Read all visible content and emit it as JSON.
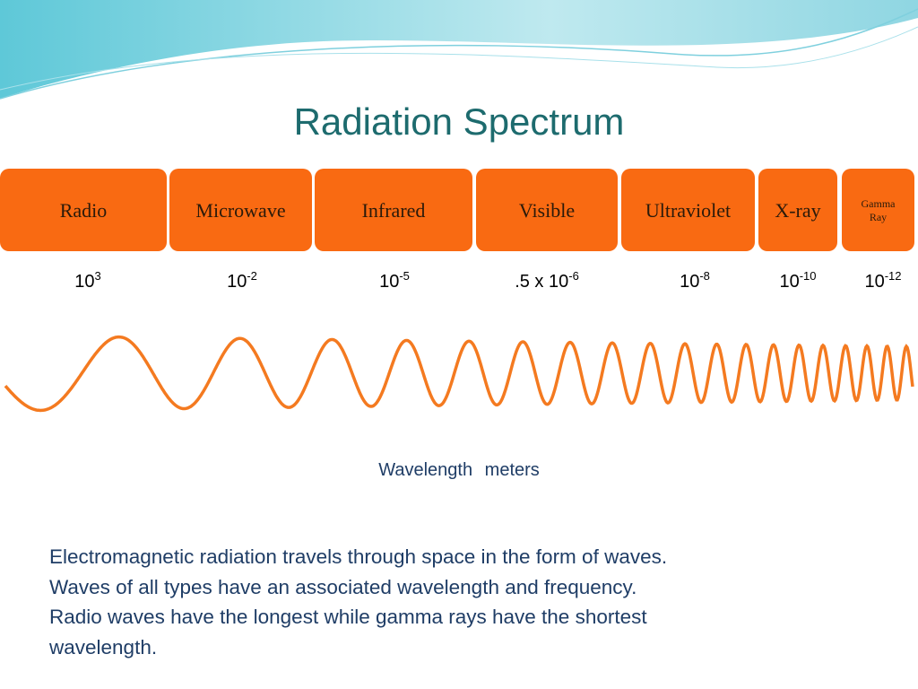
{
  "title": "Radiation Spectrum",
  "bands": [
    {
      "label": "Radio",
      "wavelength": {
        "base": "10",
        "exp": "3"
      }
    },
    {
      "label": "Microwave",
      "wavelength": {
        "base": "10",
        "exp": "-2"
      }
    },
    {
      "label": "Infrared",
      "wavelength": {
        "base": "10",
        "exp": "-5"
      }
    },
    {
      "label": "Visible",
      "wavelength": {
        "base": ".5 x 10",
        "exp": "-6"
      }
    },
    {
      "label": "Ultraviolet",
      "wavelength": {
        "base": "10",
        "exp": "-8"
      }
    },
    {
      "label": "X-ray",
      "wavelength": {
        "base": "10",
        "exp": "-10"
      }
    },
    {
      "label": "Gamma Ray",
      "wavelength": {
        "base": "10",
        "exp": "-12"
      }
    }
  ],
  "axis_label": {
    "name": "Wavelength",
    "unit": "meters"
  },
  "paragraph": [
    "Electromagnetic radiation travels through space in the form of waves.",
    "Waves of all types have an associated wavelength and frequency.",
    "Radio waves have the longest while gamma rays have the shortest",
    "wavelength."
  ]
}
